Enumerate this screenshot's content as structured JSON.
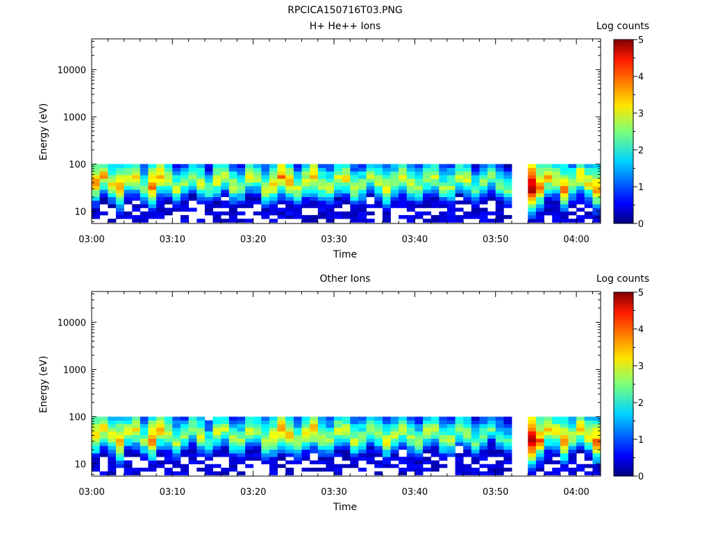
{
  "figure": {
    "title": "RPCICA150716T03.PNG"
  },
  "colors": {
    "background": "#ffffff",
    "axis": "#000000",
    "colormap": "jet"
  },
  "chart_data": [
    {
      "type": "heatmap",
      "title": "H+ He++ Ions",
      "xlabel": "Time",
      "ylabel": "Energy (eV)",
      "x_range": [
        "03:00",
        "04:03"
      ],
      "x_ticks": [
        "03:00",
        "03:10",
        "03:20",
        "03:30",
        "03:40",
        "03:50",
        "04:00"
      ],
      "y_scale": "log",
      "y_range": [
        5.5,
        45000
      ],
      "y_ticks": [
        "10",
        "100",
        "1000",
        "10000"
      ],
      "colorbar": {
        "label": "Log counts",
        "min": 0,
        "max": 5,
        "ticks": [
          "0",
          "1",
          "2",
          "3",
          "4",
          "5"
        ]
      },
      "data_gap": [
        "03:52",
        "03:53"
      ],
      "energy_band_ev": [
        5.8,
        100
      ],
      "peak_energy_ev": [
        28,
        55
      ],
      "times": [
        "03:00",
        "03:01",
        "03:02",
        "03:03",
        "03:04",
        "03:05",
        "03:06",
        "03:07",
        "03:08",
        "03:09",
        "03:10",
        "03:11",
        "03:12",
        "03:13",
        "03:14",
        "03:15",
        "03:16",
        "03:17",
        "03:18",
        "03:19",
        "03:20",
        "03:21",
        "03:22",
        "03:23",
        "03:24",
        "03:25",
        "03:26",
        "03:27",
        "03:28",
        "03:29",
        "03:30",
        "03:31",
        "03:32",
        "03:33",
        "03:34",
        "03:35",
        "03:36",
        "03:37",
        "03:38",
        "03:39",
        "03:40",
        "03:41",
        "03:42",
        "03:43",
        "03:44",
        "03:45",
        "03:46",
        "03:47",
        "03:48",
        "03:49",
        "03:50",
        "03:51",
        "03:52",
        "03:53",
        "03:54",
        "03:55",
        "03:56",
        "03:57",
        "03:58",
        "03:59",
        "04:00",
        "04:01",
        "04:02"
      ],
      "peak_log_counts": [
        3.7,
        3.5,
        3.2,
        3.8,
        3.0,
        3.4,
        2.8,
        3.9,
        3.6,
        3.0,
        2.9,
        2.6,
        2.8,
        3.1,
        2.5,
        3.2,
        2.9,
        3.0,
        2.7,
        3.0,
        2.8,
        3.1,
        3.4,
        3.8,
        3.5,
        3.0,
        3.2,
        3.6,
        3.0,
        2.9,
        3.1,
        3.3,
        3.0,
        2.8,
        2.9,
        3.0,
        3.2,
        2.9,
        3.1,
        3.0,
        2.8,
        2.9,
        3.0,
        2.7,
        2.8,
        2.9,
        3.0,
        2.6,
        2.7,
        2.7,
        2.7,
        2.6,
        null,
        null,
        5.0,
        3.9,
        3.5,
        3.2,
        3.8,
        3.0,
        3.4,
        3.3,
        3.8
      ]
    },
    {
      "type": "heatmap",
      "title": "Other Ions",
      "xlabel": "Time",
      "ylabel": "Energy (eV)",
      "x_range": [
        "03:00",
        "04:03"
      ],
      "x_ticks": [
        "03:00",
        "03:10",
        "03:20",
        "03:30",
        "03:40",
        "03:50",
        "04:00"
      ],
      "y_scale": "log",
      "y_range": [
        5.5,
        45000
      ],
      "y_ticks": [
        "10",
        "100",
        "1000",
        "10000"
      ],
      "colorbar": {
        "label": "Log counts",
        "min": 0,
        "max": 5,
        "ticks": [
          "0",
          "1",
          "2",
          "3",
          "4",
          "5"
        ]
      },
      "data_gap": [
        "03:52",
        "03:53"
      ],
      "energy_band_ev": [
        5.8,
        100
      ],
      "peak_energy_ev": [
        28,
        55
      ],
      "times": [
        "03:00",
        "03:01",
        "03:02",
        "03:03",
        "03:04",
        "03:05",
        "03:06",
        "03:07",
        "03:08",
        "03:09",
        "03:10",
        "03:11",
        "03:12",
        "03:13",
        "03:14",
        "03:15",
        "03:16",
        "03:17",
        "03:18",
        "03:19",
        "03:20",
        "03:21",
        "03:22",
        "03:23",
        "03:24",
        "03:25",
        "03:26",
        "03:27",
        "03:28",
        "03:29",
        "03:30",
        "03:31",
        "03:32",
        "03:33",
        "03:34",
        "03:35",
        "03:36",
        "03:37",
        "03:38",
        "03:39",
        "03:40",
        "03:41",
        "03:42",
        "03:43",
        "03:44",
        "03:45",
        "03:46",
        "03:47",
        "03:48",
        "03:49",
        "03:50",
        "03:51",
        "03:52",
        "03:53",
        "03:54",
        "03:55",
        "03:56",
        "03:57",
        "03:58",
        "03:59",
        "04:00",
        "04:01",
        "04:02"
      ],
      "peak_log_counts": [
        3.6,
        3.4,
        3.2,
        3.8,
        3.0,
        3.3,
        2.8,
        3.9,
        3.6,
        3.0,
        2.9,
        2.6,
        2.8,
        3.0,
        2.5,
        3.1,
        2.9,
        2.9,
        2.7,
        3.0,
        2.8,
        3.1,
        3.4,
        3.9,
        3.5,
        3.0,
        3.2,
        3.7,
        3.0,
        2.9,
        3.1,
        3.2,
        3.0,
        2.8,
        2.9,
        3.0,
        3.1,
        2.9,
        3.0,
        2.9,
        2.8,
        2.9,
        2.9,
        2.7,
        2.8,
        2.8,
        2.9,
        2.5,
        2.5,
        2.4,
        2.4,
        2.4,
        null,
        null,
        5.0,
        3.9,
        3.5,
        3.2,
        3.8,
        3.0,
        3.4,
        3.3,
        3.9
      ]
    }
  ]
}
